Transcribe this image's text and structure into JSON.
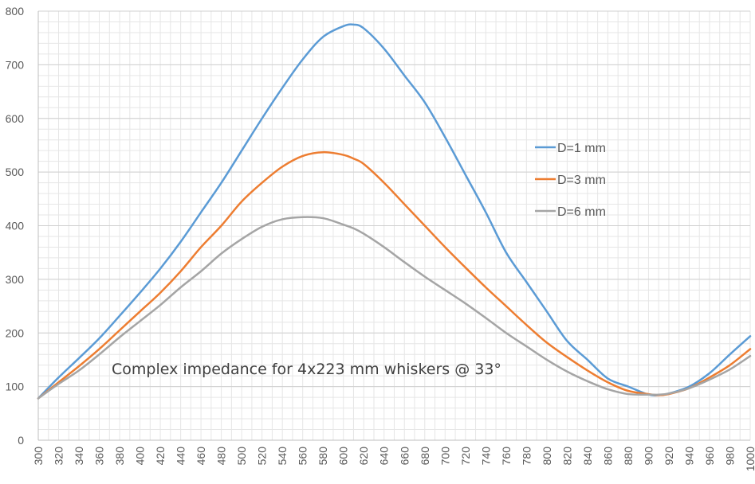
{
  "chart_data": {
    "type": "line",
    "title": "",
    "xlabel": "",
    "ylabel": "",
    "annotation": "Complex impedance for 4x223 mm whiskers @ 33°",
    "xlim": [
      300,
      1000
    ],
    "ylim": [
      0,
      800
    ],
    "x_tick_step": 20,
    "y_tick_step": 100,
    "y_minor_step": 20,
    "x_minor_step": 10,
    "grid": true,
    "legend_position": "right",
    "x": [
      300,
      320,
      340,
      360,
      380,
      400,
      420,
      440,
      460,
      480,
      500,
      520,
      540,
      560,
      580,
      600,
      610,
      620,
      640,
      660,
      680,
      700,
      720,
      740,
      760,
      780,
      800,
      820,
      840,
      860,
      880,
      900,
      910,
      920,
      940,
      960,
      980,
      1000
    ],
    "series": [
      {
        "name": "D=1 mm",
        "color": "#5b9bd5",
        "values": [
          78,
          117,
          153,
          190,
          232,
          275,
          320,
          370,
          425,
          480,
          540,
          600,
          657,
          710,
          752,
          772,
          775,
          768,
          730,
          680,
          630,
          565,
          495,
          425,
          350,
          295,
          240,
          185,
          150,
          115,
          100,
          85,
          84,
          87,
          100,
          125,
          160,
          194
        ]
      },
      {
        "name": "D=3 mm",
        "color": "#ed7d31",
        "values": [
          78,
          108,
          138,
          170,
          205,
          240,
          275,
          315,
          360,
          400,
          445,
          480,
          510,
          530,
          537,
          532,
          525,
          515,
          480,
          440,
          400,
          360,
          322,
          285,
          250,
          215,
          182,
          155,
          130,
          108,
          92,
          86,
          84,
          86,
          97,
          117,
          140,
          170
        ]
      },
      {
        "name": "D=6 mm",
        "color": "#a5a5a5",
        "values": [
          78,
          105,
          130,
          160,
          192,
          222,
          252,
          285,
          315,
          348,
          375,
          398,
          412,
          416,
          414,
          402,
          395,
          385,
          360,
          332,
          305,
          280,
          255,
          228,
          200,
          175,
          150,
          128,
          110,
          95,
          86,
          85,
          85,
          87,
          97,
          113,
          132,
          157
        ]
      }
    ]
  }
}
